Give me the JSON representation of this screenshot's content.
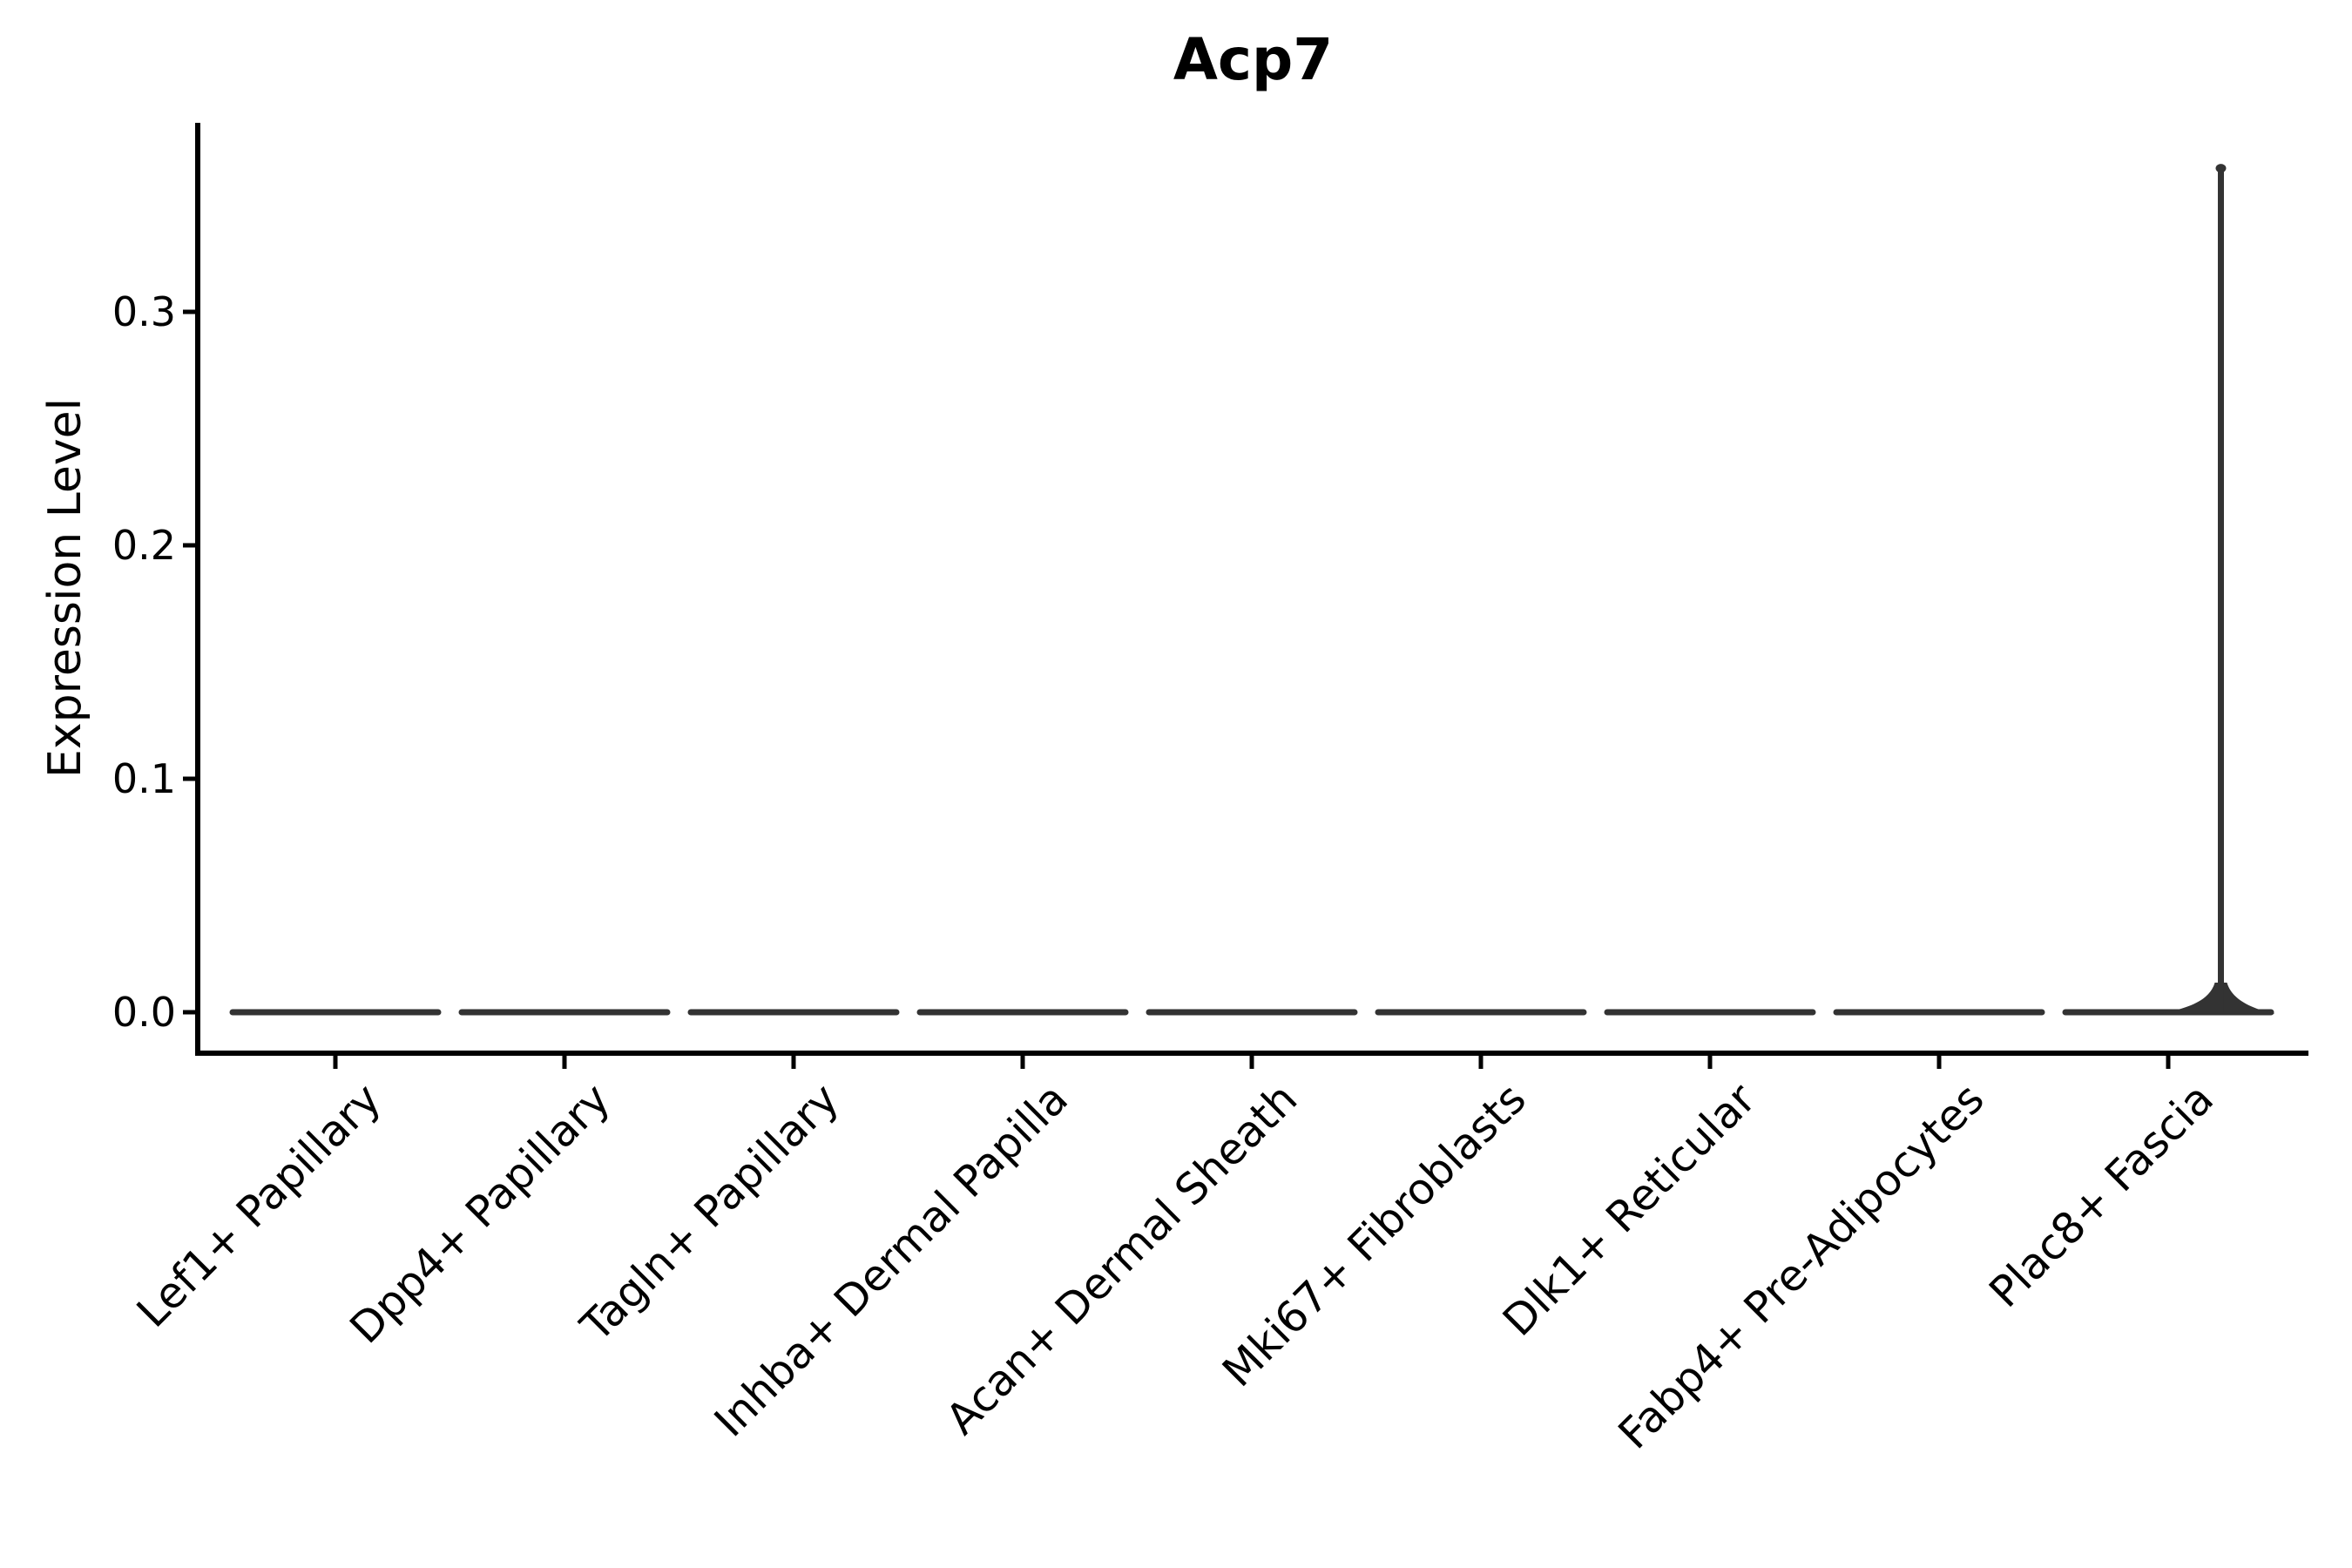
{
  "figure": {
    "background_color": "#ffffff",
    "title": "Acp7"
  },
  "chart_data": {
    "type": "violin",
    "title": "Acp7",
    "xlabel": "",
    "ylabel": "Expression Level",
    "grid": false,
    "legend": "none",
    "x_tick_rotation": 45,
    "ylim": [
      0.0,
      0.381
    ],
    "yticks": [
      "0.0",
      "0.1",
      "0.2",
      "0.3"
    ],
    "ytick_values": [
      0.0,
      0.1,
      0.2,
      0.3
    ],
    "categories": [
      "Lef1+ Papillary",
      "Dpp4+ Papillary",
      "Tagln+ Papillary",
      "Inhba+ Dermal Papilla",
      "Acan+ Dermal Sheath",
      "Mki67+ Fibroblasts",
      "Dlk1+ Reticular",
      "Fabp4+ Pre-Adipocytes",
      "Plac8+ Fascia"
    ],
    "series": [
      {
        "name": "Lef1+ Papillary",
        "expression_min": 0.0,
        "expression_max": 0.0,
        "shape": "flat-bar"
      },
      {
        "name": "Dpp4+ Papillary",
        "expression_min": 0.0,
        "expression_max": 0.0,
        "shape": "flat-bar"
      },
      {
        "name": "Tagln+ Papillary",
        "expression_min": 0.0,
        "expression_max": 0.0,
        "shape": "flat-bar"
      },
      {
        "name": "Inhba+ Dermal Papilla",
        "expression_min": 0.0,
        "expression_max": 0.0,
        "shape": "flat-bar"
      },
      {
        "name": "Acan+ Dermal Sheath",
        "expression_min": 0.0,
        "expression_max": 0.0,
        "shape": "flat-bar"
      },
      {
        "name": "Mki67+ Fibroblasts",
        "expression_min": 0.0,
        "expression_max": 0.0,
        "shape": "flat-bar"
      },
      {
        "name": "Dlk1+ Reticular",
        "expression_min": 0.0,
        "expression_max": 0.0,
        "shape": "flat-bar"
      },
      {
        "name": "Fabp4+ Pre-Adipocytes",
        "expression_min": 0.0,
        "expression_max": 0.0,
        "shape": "flat-bar"
      },
      {
        "name": "Plac8+ Fascia",
        "expression_min": 0.0,
        "expression_max": 0.363,
        "shape": "flat-bar-with-spike",
        "spike_offset_units": 0.23
      }
    ],
    "colors": {
      "violin": "#333333",
      "axis": "#000000",
      "text": "#000000",
      "background": "#ffffff"
    }
  }
}
